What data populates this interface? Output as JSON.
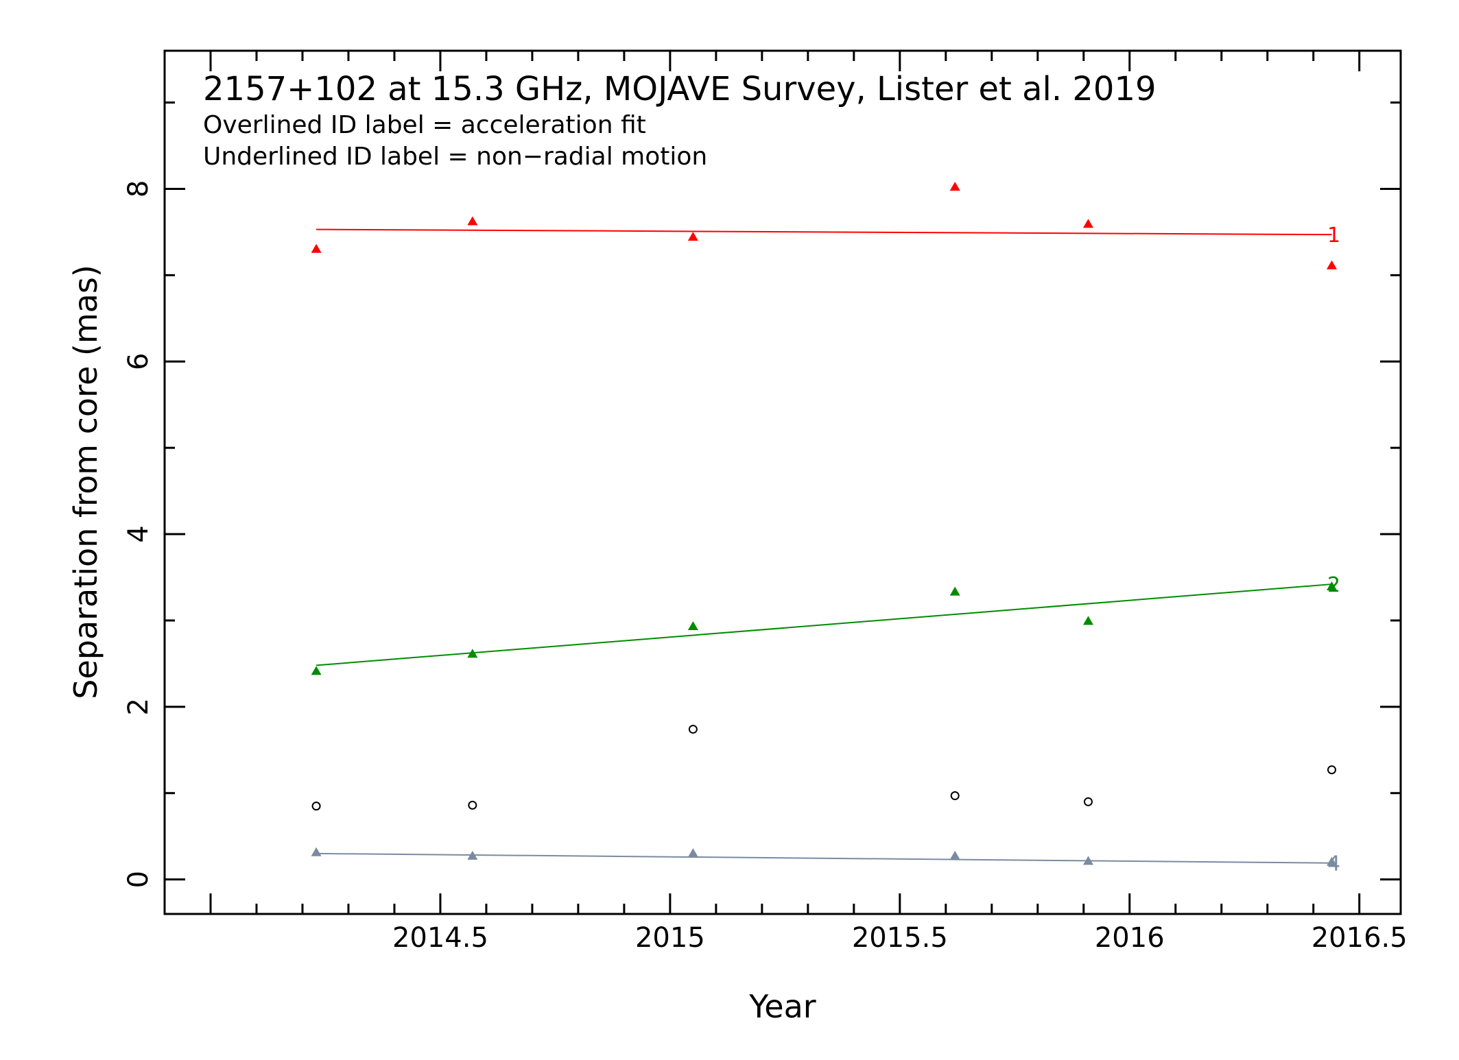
{
  "chart_data": {
    "type": "scatter",
    "title": "2157+102 at 15.3 GHz, MOJAVE Survey, Lister et al. 2019",
    "notes": [
      "Overlined ID label = acceleration fit",
      "Underlined ID label = non−radial motion"
    ],
    "xlabel": "Year",
    "ylabel": "Separation from core (mas)",
    "xlim": [
      2013.9,
      2016.59
    ],
    "ylim": [
      -0.4,
      9.6
    ],
    "x_ticks": [
      2014.5,
      2015,
      2015.5,
      2016,
      2016.5
    ],
    "x_tick_labels": [
      "2014.5",
      "2015",
      "2015.5",
      "2016",
      "2016.5"
    ],
    "y_ticks": [
      0,
      2,
      4,
      6,
      8
    ],
    "y_tick_labels": [
      "0",
      "2",
      "4",
      "6",
      "8"
    ],
    "series": [
      {
        "name": "1",
        "color": "#ff0000",
        "marker": "triangle",
        "x": [
          2014.23,
          2014.57,
          2015.05,
          2015.62,
          2015.91,
          2016.44
        ],
        "y": [
          7.3,
          7.62,
          7.44,
          8.02,
          7.59,
          7.11
        ],
        "fit": {
          "x": [
            2014.23,
            2016.44
          ],
          "y": [
            7.53,
            7.47
          ]
        }
      },
      {
        "name": "2",
        "color": "#008c00",
        "marker": "triangle",
        "x": [
          2014.23,
          2014.57,
          2015.05,
          2015.62,
          2015.91,
          2016.44
        ],
        "y": [
          2.41,
          2.61,
          2.93,
          3.33,
          2.99,
          3.39
        ],
        "fit": {
          "x": [
            2014.23,
            2016.44
          ],
          "y": [
            2.48,
            3.42
          ]
        }
      },
      {
        "name": "4",
        "color": "#7a8ba0",
        "marker": "triangle",
        "x": [
          2014.23,
          2014.57,
          2015.05,
          2015.62,
          2015.91,
          2016.44
        ],
        "y": [
          0.31,
          0.27,
          0.3,
          0.27,
          0.21,
          0.2
        ],
        "fit": {
          "x": [
            2014.23,
            2016.44
          ],
          "y": [
            0.3,
            0.19
          ]
        }
      },
      {
        "color": "#000000",
        "marker": "open-circle",
        "x": [
          2014.23,
          2014.57,
          2015.05,
          2015.62,
          2015.91,
          2016.44
        ],
        "y": [
          0.85,
          0.86,
          1.74,
          0.97,
          0.9,
          1.27
        ]
      }
    ]
  }
}
